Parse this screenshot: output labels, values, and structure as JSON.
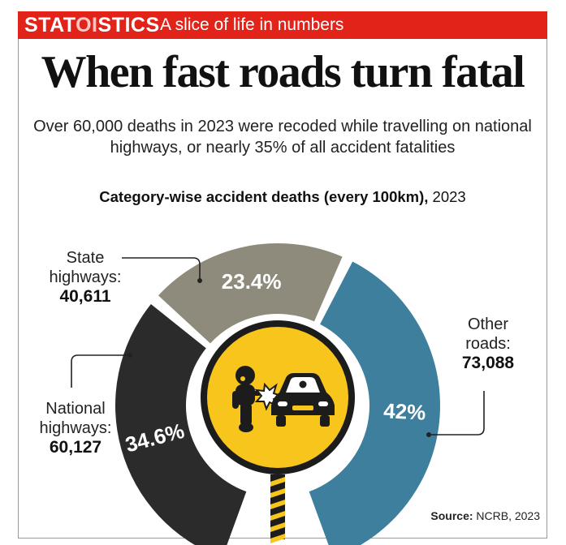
{
  "header": {
    "brand_prefix": "STAT",
    "brand_toi": "OI",
    "brand_suffix": "STICS",
    "tagline": "A slice of life in numbers"
  },
  "headline": "When fast roads turn fatal",
  "subtitle": "Over 60,000 deaths in 2023 were recoded while travelling on national highways, or nearly 35% of all accident fatalities",
  "chart_title": {
    "bold": "Category-wise accident deaths (every 100km),",
    "year": "2023"
  },
  "chart_data": {
    "type": "pie",
    "style": "half-donut",
    "title": "Category-wise accident deaths (every 100km), 2023",
    "categories": [
      "National highways",
      "State highways",
      "Other roads"
    ],
    "values": [
      60127,
      40611,
      73088
    ],
    "value_labels": [
      "60,127",
      "40,611",
      "73,088"
    ],
    "percent_labels": [
      "34.6%",
      "23.4%",
      "42%"
    ],
    "colors": [
      "#2b2b2b",
      "#8f8b7c",
      "#3d7f9c"
    ],
    "label_text": [
      [
        "National",
        "highways:"
      ],
      [
        "State",
        "highways:"
      ],
      [
        "Other",
        "roads:"
      ]
    ]
  },
  "colors": {
    "banner": "#e2231a",
    "sign_yellow": "#f7c51c",
    "sign_border": "#1c1c1c"
  },
  "icons": [
    "road-sign-icon",
    "motorcyclist-icon",
    "car-icon",
    "collision-icon"
  ],
  "source": {
    "label": "Source:",
    "text": "NCRB, 2023"
  }
}
